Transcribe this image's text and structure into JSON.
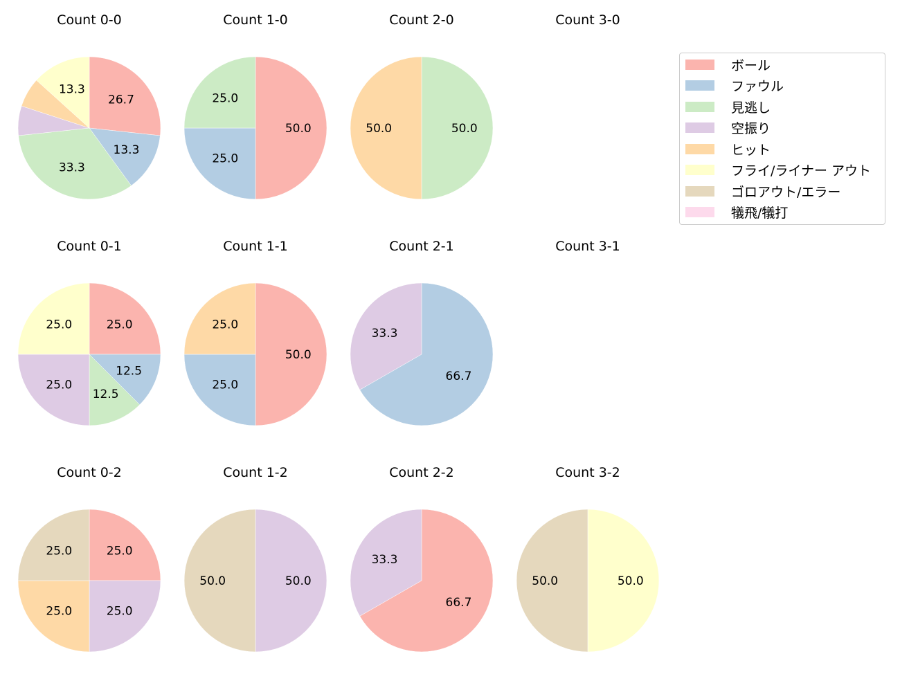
{
  "chart_data": {
    "type": "pie",
    "layout": {
      "rows": 3,
      "cols": 4,
      "startangle": 90,
      "direction": "clockwise",
      "legend_position": "upper right"
    },
    "legend": [
      {
        "label": "ボール",
        "color": "#fbb4ae"
      },
      {
        "label": "ファウル",
        "color": "#b3cde3"
      },
      {
        "label": "見逃し",
        "color": "#ccebc5"
      },
      {
        "label": "空振り",
        "color": "#decbe4"
      },
      {
        "label": "ヒット",
        "color": "#fed9a6"
      },
      {
        "label": "フライ/ライナー アウト",
        "color": "#ffffcc"
      },
      {
        "label": "ゴロアウト/エラー",
        "color": "#e5d8bd"
      },
      {
        "label": "犠飛/犠打",
        "color": "#fddaec"
      }
    ],
    "pies": [
      {
        "title": "Count 0-0",
        "row": 0,
        "col": 0,
        "slices": [
          {
            "category": "ボール",
            "value": 26.7,
            "label": "26.7"
          },
          {
            "category": "ファウル",
            "value": 13.3,
            "label": "13.3"
          },
          {
            "category": "見逃し",
            "value": 33.3,
            "label": "33.3"
          },
          {
            "category": "空振り",
            "value": 6.7,
            "label": ""
          },
          {
            "category": "ヒット",
            "value": 6.7,
            "label": ""
          },
          {
            "category": "フライ/ライナー アウト",
            "value": 13.3,
            "label": "13.3"
          }
        ]
      },
      {
        "title": "Count 1-0",
        "row": 0,
        "col": 1,
        "slices": [
          {
            "category": "ボール",
            "value": 50.0,
            "label": "50.0"
          },
          {
            "category": "ファウル",
            "value": 25.0,
            "label": "25.0"
          },
          {
            "category": "見逃し",
            "value": 25.0,
            "label": "25.0"
          }
        ]
      },
      {
        "title": "Count 2-0",
        "row": 0,
        "col": 2,
        "slices": [
          {
            "category": "見逃し",
            "value": 50.0,
            "label": "50.0"
          },
          {
            "category": "ヒット",
            "value": 50.0,
            "label": "50.0"
          }
        ]
      },
      {
        "title": "Count 3-0",
        "row": 0,
        "col": 3,
        "slices": []
      },
      {
        "title": "Count 0-1",
        "row": 1,
        "col": 0,
        "slices": [
          {
            "category": "ボール",
            "value": 25.0,
            "label": "25.0"
          },
          {
            "category": "ファウル",
            "value": 12.5,
            "label": "12.5"
          },
          {
            "category": "見逃し",
            "value": 12.5,
            "label": "12.5"
          },
          {
            "category": "空振り",
            "value": 25.0,
            "label": "25.0"
          },
          {
            "category": "フライ/ライナー アウト",
            "value": 25.0,
            "label": "25.0"
          }
        ]
      },
      {
        "title": "Count 1-1",
        "row": 1,
        "col": 1,
        "slices": [
          {
            "category": "ボール",
            "value": 50.0,
            "label": "50.0"
          },
          {
            "category": "ファウル",
            "value": 25.0,
            "label": "25.0"
          },
          {
            "category": "ヒット",
            "value": 25.0,
            "label": "25.0"
          }
        ]
      },
      {
        "title": "Count 2-1",
        "row": 1,
        "col": 2,
        "slices": [
          {
            "category": "ファウル",
            "value": 66.7,
            "label": "66.7"
          },
          {
            "category": "空振り",
            "value": 33.3,
            "label": "33.3"
          }
        ]
      },
      {
        "title": "Count 3-1",
        "row": 1,
        "col": 3,
        "slices": []
      },
      {
        "title": "Count 0-2",
        "row": 2,
        "col": 0,
        "slices": [
          {
            "category": "ボール",
            "value": 25.0,
            "label": "25.0"
          },
          {
            "category": "空振り",
            "value": 25.0,
            "label": "25.0"
          },
          {
            "category": "ヒット",
            "value": 25.0,
            "label": "25.0"
          },
          {
            "category": "ゴロアウト/エラー",
            "value": 25.0,
            "label": "25.0"
          }
        ]
      },
      {
        "title": "Count 1-2",
        "row": 2,
        "col": 1,
        "slices": [
          {
            "category": "空振り",
            "value": 50.0,
            "label": "50.0"
          },
          {
            "category": "ゴロアウト/エラー",
            "value": 50.0,
            "label": "50.0"
          }
        ]
      },
      {
        "title": "Count 2-2",
        "row": 2,
        "col": 2,
        "slices": [
          {
            "category": "ボール",
            "value": 66.7,
            "label": "66.7"
          },
          {
            "category": "空振り",
            "value": 33.3,
            "label": "33.3"
          }
        ]
      },
      {
        "title": "Count 3-2",
        "row": 2,
        "col": 3,
        "slices": [
          {
            "category": "フライ/ライナー アウト",
            "value": 50.0,
            "label": "50.0"
          },
          {
            "category": "ゴロアウト/エラー",
            "value": 50.0,
            "label": "50.0"
          }
        ]
      }
    ]
  }
}
